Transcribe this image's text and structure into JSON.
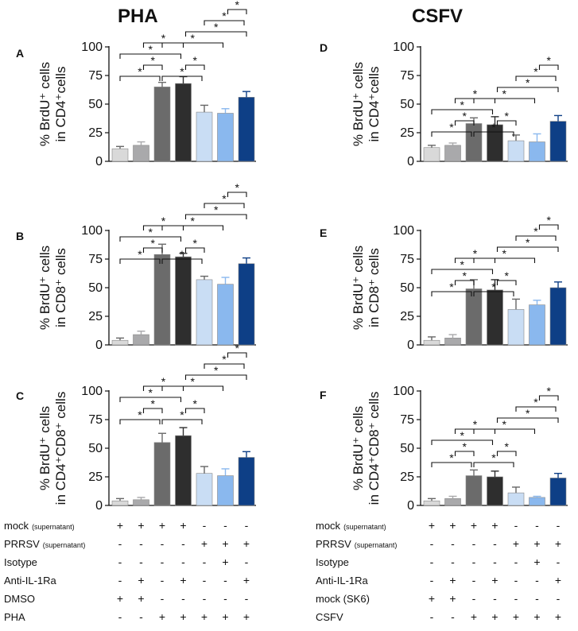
{
  "figure": {
    "titles": [
      "PHA",
      "CSFV"
    ],
    "panel_letters": [
      "A",
      "B",
      "C",
      "D",
      "E",
      "F"
    ]
  },
  "colors": {
    "bars": [
      "#d9d9d9",
      "#a9a9ab",
      "#6b6b6b",
      "#2e2e2e",
      "#c9ddf4",
      "#8ab8ee",
      "#0e3f86"
    ]
  },
  "chart_data": [
    {
      "type": "bar",
      "panel": "A",
      "title": "",
      "ylabel": [
        "% BrdU⁺ cells",
        "in CD4⁺cells"
      ],
      "ylim": [
        0,
        100
      ],
      "yticks": [
        0,
        25,
        50,
        75,
        100
      ],
      "values": [
        11,
        14,
        65,
        68,
        43,
        42,
        56
      ],
      "errors": [
        2,
        3,
        4,
        6,
        6,
        4,
        5
      ],
      "significance": [
        {
          "from": 0,
          "to": 2,
          "label": "*"
        },
        {
          "from": 1,
          "to": 2,
          "label": "*"
        },
        {
          "from": 0,
          "to": 3,
          "label": "*"
        },
        {
          "from": 1,
          "to": 3,
          "label": "*"
        },
        {
          "from": 2,
          "to": 4,
          "label": "*"
        },
        {
          "from": 3,
          "to": 4,
          "label": "*"
        },
        {
          "from": 2,
          "to": 5,
          "label": "*"
        },
        {
          "from": 3,
          "to": 6,
          "label": "*"
        },
        {
          "from": 4,
          "to": 6,
          "label": "*"
        },
        {
          "from": 5,
          "to": 6,
          "label": "*"
        }
      ]
    },
    {
      "type": "bar",
      "panel": "B",
      "title": "",
      "ylabel": [
        "% BrdU⁺ cells",
        "in CD8⁺ cells"
      ],
      "ylim": [
        0,
        100
      ],
      "yticks": [
        0,
        25,
        50,
        75,
        100
      ],
      "values": [
        4,
        9,
        79,
        77,
        57,
        53,
        71
      ],
      "errors": [
        2,
        3,
        9,
        3,
        3,
        6,
        5
      ],
      "significance": [
        {
          "from": 0,
          "to": 2,
          "label": "*"
        },
        {
          "from": 1,
          "to": 2,
          "label": "*"
        },
        {
          "from": 0,
          "to": 3,
          "label": "*"
        },
        {
          "from": 1,
          "to": 3,
          "label": "*"
        },
        {
          "from": 2,
          "to": 4,
          "label": "*"
        },
        {
          "from": 3,
          "to": 4,
          "label": "*"
        },
        {
          "from": 2,
          "to": 5,
          "label": "*"
        },
        {
          "from": 3,
          "to": 6,
          "label": "*"
        },
        {
          "from": 4,
          "to": 6,
          "label": "*"
        },
        {
          "from": 5,
          "to": 6,
          "label": "*"
        }
      ]
    },
    {
      "type": "bar",
      "panel": "C",
      "title": "",
      "ylabel": [
        "% BrdU⁺ cells",
        "in CD4⁺CD8⁺ cells"
      ],
      "ylim": [
        0,
        100
      ],
      "yticks": [
        0,
        25,
        50,
        75,
        100
      ],
      "values": [
        4,
        5,
        55,
        61,
        28,
        26,
        42
      ],
      "errors": [
        2,
        2,
        8,
        7,
        6,
        6,
        5
      ],
      "significance": [
        {
          "from": 0,
          "to": 2,
          "label": "*"
        },
        {
          "from": 1,
          "to": 2,
          "label": "*"
        },
        {
          "from": 0,
          "to": 3,
          "label": "*"
        },
        {
          "from": 1,
          "to": 3,
          "label": "*"
        },
        {
          "from": 2,
          "to": 4,
          "label": "*"
        },
        {
          "from": 3,
          "to": 4,
          "label": "*"
        },
        {
          "from": 2,
          "to": 5,
          "label": "*"
        },
        {
          "from": 3,
          "to": 6,
          "label": "*"
        },
        {
          "from": 4,
          "to": 6,
          "label": "*"
        },
        {
          "from": 5,
          "to": 6,
          "label": "*"
        }
      ]
    },
    {
      "type": "bar",
      "panel": "D",
      "title": "",
      "ylabel": [
        "% BrdU⁺ cells",
        "in CD4⁺cells"
      ],
      "ylim": [
        0,
        100
      ],
      "yticks": [
        0,
        25,
        50,
        75,
        100
      ],
      "values": [
        12,
        14,
        33,
        32,
        18,
        17,
        35
      ],
      "errors": [
        2,
        2,
        5,
        7,
        5,
        7,
        5
      ],
      "significance": [
        {
          "from": 0,
          "to": 2,
          "label": "*"
        },
        {
          "from": 1,
          "to": 2,
          "label": "*"
        },
        {
          "from": 0,
          "to": 3,
          "label": "*"
        },
        {
          "from": 1,
          "to": 3,
          "label": "*"
        },
        {
          "from": 2,
          "to": 4,
          "label": "*"
        },
        {
          "from": 3,
          "to": 4,
          "label": "*"
        },
        {
          "from": 2,
          "to": 5,
          "label": "*"
        },
        {
          "from": 3,
          "to": 6,
          "label": "*"
        },
        {
          "from": 4,
          "to": 6,
          "label": "*"
        },
        {
          "from": 5,
          "to": 6,
          "label": "*"
        }
      ]
    },
    {
      "type": "bar",
      "panel": "E",
      "title": "",
      "ylabel": [
        "% BrdU⁺ cells",
        "in CD8⁺ cells"
      ],
      "ylim": [
        0,
        100
      ],
      "yticks": [
        0,
        25,
        50,
        75,
        100
      ],
      "values": [
        4,
        6,
        49,
        48,
        31,
        35,
        50
      ],
      "errors": [
        3,
        3,
        8,
        9,
        9,
        4,
        5
      ],
      "significance": [
        {
          "from": 0,
          "to": 2,
          "label": "*"
        },
        {
          "from": 1,
          "to": 2,
          "label": "*"
        },
        {
          "from": 0,
          "to": 3,
          "label": "*"
        },
        {
          "from": 1,
          "to": 3,
          "label": "*"
        },
        {
          "from": 2,
          "to": 4,
          "label": "*"
        },
        {
          "from": 3,
          "to": 4,
          "label": "*"
        },
        {
          "from": 2,
          "to": 5,
          "label": "*"
        },
        {
          "from": 3,
          "to": 6,
          "label": "*"
        },
        {
          "from": 4,
          "to": 6,
          "label": "*"
        },
        {
          "from": 5,
          "to": 6,
          "label": "*"
        }
      ]
    },
    {
      "type": "bar",
      "panel": "F",
      "title": "",
      "ylabel": [
        "% BrdU⁺ cells",
        "in CD4⁺CD8⁺ cells"
      ],
      "ylim": [
        0,
        100
      ],
      "yticks": [
        0,
        25,
        50,
        75,
        100
      ],
      "values": [
        4,
        6,
        26,
        25,
        11,
        7,
        24
      ],
      "errors": [
        2,
        2,
        5,
        5,
        5,
        1,
        4
      ],
      "significance": [
        {
          "from": 0,
          "to": 2,
          "label": "*"
        },
        {
          "from": 1,
          "to": 2,
          "label": "*"
        },
        {
          "from": 0,
          "to": 3,
          "label": "*"
        },
        {
          "from": 1,
          "to": 3,
          "label": "*"
        },
        {
          "from": 2,
          "to": 4,
          "label": "*"
        },
        {
          "from": 3,
          "to": 4,
          "label": "*"
        },
        {
          "from": 2,
          "to": 5,
          "label": "*"
        },
        {
          "from": 3,
          "to": 6,
          "label": "*"
        },
        {
          "from": 4,
          "to": 6,
          "label": "*"
        },
        {
          "from": 5,
          "to": 6,
          "label": "*"
        }
      ]
    }
  ],
  "conditions": {
    "left": [
      {
        "label": "mock",
        "sub": "(supernatant)",
        "signs": [
          "+",
          "+",
          "+",
          "+",
          "-",
          "-",
          "-"
        ]
      },
      {
        "label": "PRRSV",
        "sub": "(supernatant)",
        "signs": [
          "-",
          "-",
          "-",
          "-",
          "+",
          "+",
          "+"
        ]
      },
      {
        "label": "Isotype",
        "sub": "",
        "signs": [
          "-",
          "-",
          "-",
          "-",
          "-",
          "+",
          "-"
        ]
      },
      {
        "label": "Anti-IL-1Ra",
        "sub": "",
        "signs": [
          "-",
          "+",
          "-",
          "+",
          "-",
          "-",
          "+"
        ]
      },
      {
        "label": "DMSO",
        "sub": "",
        "signs": [
          "+",
          "+",
          "-",
          "-",
          "-",
          "-",
          "-"
        ]
      },
      {
        "label": "PHA",
        "sub": "",
        "signs": [
          "-",
          "-",
          "+",
          "+",
          "+",
          "+",
          "+"
        ]
      }
    ],
    "right": [
      {
        "label": "mock",
        "sub": "(supernatant)",
        "signs": [
          "+",
          "+",
          "+",
          "+",
          "-",
          "-",
          "-"
        ]
      },
      {
        "label": "PRRSV",
        "sub": "(supernatant)",
        "signs": [
          "-",
          "-",
          "-",
          "-",
          "+",
          "+",
          "+"
        ]
      },
      {
        "label": "Isotype",
        "sub": "",
        "signs": [
          "-",
          "-",
          "-",
          "-",
          "-",
          "+",
          "-"
        ]
      },
      {
        "label": "Anti-IL-1Ra",
        "sub": "",
        "signs": [
          "-",
          "+",
          "-",
          "+",
          "-",
          "-",
          "+"
        ]
      },
      {
        "label": "mock (SK6)",
        "sub": "",
        "signs": [
          "+",
          "+",
          "-",
          "-",
          "-",
          "-",
          "-"
        ]
      },
      {
        "label": "CSFV",
        "sub": "",
        "signs": [
          "-",
          "-",
          "+",
          "+",
          "+",
          "+",
          "+"
        ]
      }
    ]
  }
}
